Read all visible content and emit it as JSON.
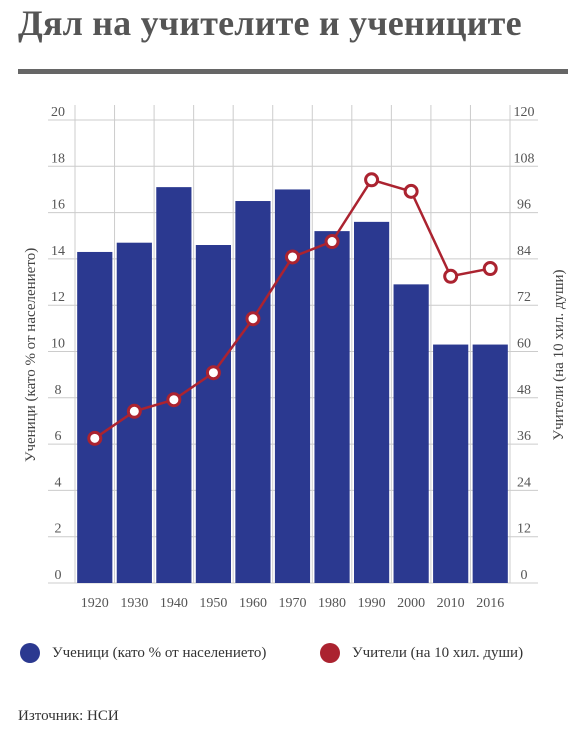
{
  "title": "Дял на учителите и учениците",
  "source": "Източник: НСИ",
  "legend": {
    "students": "Ученици (като % от населението)",
    "teachers": "Учители (на 10 хил. души)"
  },
  "colors": {
    "bars": "#2b3990",
    "line": "#ab2330",
    "grid": "#cccccc"
  },
  "chart_data": {
    "type": "bar+line",
    "categories": [
      "1920",
      "1930",
      "1940",
      "1950",
      "1960",
      "1970",
      "1980",
      "1990",
      "2000",
      "2010",
      "2016"
    ],
    "series": [
      {
        "name": "Ученици (като % от населението)",
        "type": "bar",
        "axis": "left",
        "values": [
          14.3,
          14.7,
          17.1,
          14.6,
          16.5,
          17.0,
          15.2,
          15.6,
          12.9,
          10.3,
          10.3
        ]
      },
      {
        "name": "Учители (на 10 хил. души)",
        "type": "line",
        "axis": "right",
        "values": [
          37.5,
          44.5,
          47.5,
          54.5,
          68.5,
          84.5,
          88.5,
          104.5,
          101.5,
          79.5,
          81.5
        ]
      }
    ],
    "ylabel_left": "Ученици (като % от населението)",
    "ylabel_right": "Учители (на 10 хил. души)",
    "ylim_left": [
      0,
      20
    ],
    "ylim_right": [
      0,
      120
    ],
    "yticks_left": [
      "0",
      "2",
      "4",
      "6",
      "8",
      "10",
      "12",
      "14",
      "16",
      "18",
      "20"
    ],
    "yticks_right": [
      "0",
      "12",
      "24",
      "36",
      "48",
      "60",
      "72",
      "84",
      "96",
      "108",
      "120"
    ],
    "grid": true,
    "legend_position": "bottom"
  }
}
